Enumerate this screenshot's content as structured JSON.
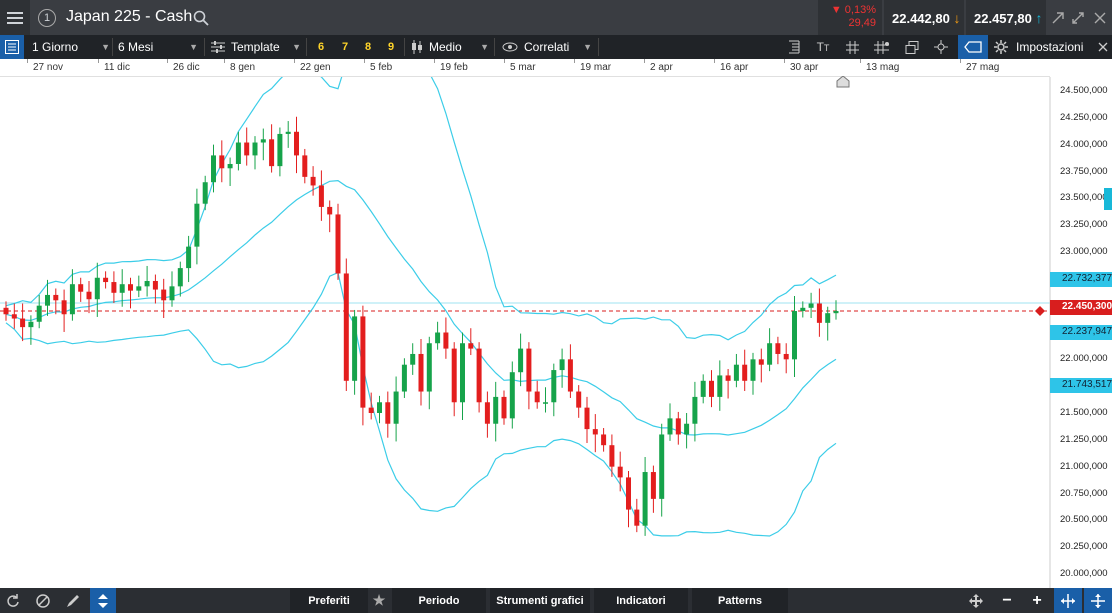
{
  "header": {
    "title": "Japan 225 - Cash",
    "menu_icon": "hamburger-icon",
    "info_badge": "1",
    "change_pct": "0,13%",
    "change_abs": "29,49",
    "bid": "22.442,80",
    "ask": "22.457,80",
    "colors": {
      "down": "#e33b3b",
      "up": "#16a34a",
      "accent": "#18b8d8"
    }
  },
  "toolbar": {
    "timeframe": "1 Giorno",
    "range": "6 Mesi",
    "template": "Template",
    "presets": [
      "6",
      "7",
      "8",
      "9"
    ],
    "mode": "Medio",
    "related": "Correlati",
    "settings": "Impostazioni"
  },
  "dates": [
    "27 nov",
    "11 dic",
    "26 dic",
    "8 gen",
    "22 gen",
    "5 feb",
    "19 feb",
    "5 mar",
    "19 mar",
    "2 apr",
    "16 apr",
    "30 apr",
    "13 mag",
    "27 mag"
  ],
  "chart_data": {
    "type": "candlestick",
    "instrument": "Japan 225 - Cash",
    "yticks": [
      "24.500,000",
      "24.250,000",
      "24.000,000",
      "23.750,000",
      "23.500,000",
      "23.250,000",
      "23.000,000",
      "22.750,000",
      "22.500,000",
      "22.250,000",
      "22.000,000",
      "21.750,000",
      "21.500,000",
      "21.250,000",
      "21.000,000",
      "20.750,000",
      "20.500,000",
      "20.250,000",
      "20.000,000"
    ],
    "ylim": [
      20000,
      24500
    ],
    "price_labels": {
      "upper_band": "22.732,377",
      "current": "22.450,300",
      "mid_band": "22.237,947",
      "lower_band": "21.743,517"
    },
    "current_price": 22450.3
  },
  "bottom": {
    "tabs": [
      "Preferiti",
      "Periodo",
      "Strumenti grafici",
      "Indicatori",
      "Patterns"
    ],
    "zoom_minus": "−",
    "zoom_plus": "+"
  }
}
